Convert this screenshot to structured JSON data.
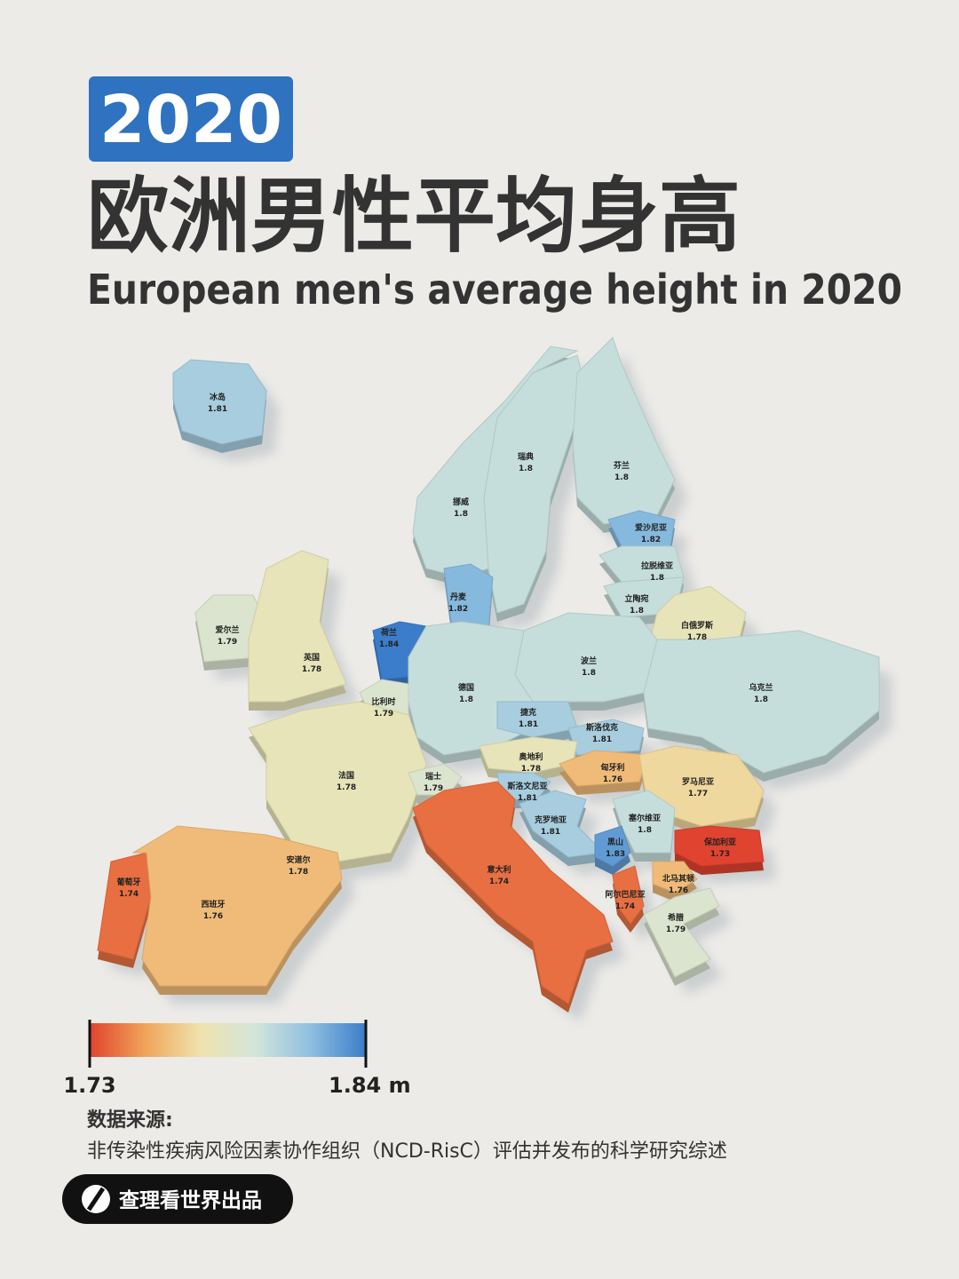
{
  "header": {
    "year": "2020",
    "title_zh": "欧洲男性平均身高",
    "title_en": "European men's average height in 2020"
  },
  "map": {
    "scale": {
      "lim": [
        1.73,
        1.84
      ],
      "colors": [
        "#e0432f",
        "#f0a459",
        "#efe3ad",
        "#d3e5da",
        "#8ebfe0",
        "#3b7dca"
      ]
    },
    "regions": [
      {
        "name": "冰岛",
        "value": 1.81
      },
      {
        "name": "瑞典",
        "value": 1.8
      },
      {
        "name": "芬兰",
        "value": 1.8
      },
      {
        "name": "挪威",
        "value": 1.8
      },
      {
        "name": "爱沙尼亚",
        "value": 1.82
      },
      {
        "name": "拉脱维亚",
        "value": 1.8
      },
      {
        "name": "立陶宛",
        "value": 1.8
      },
      {
        "name": "丹麦",
        "value": 1.82
      },
      {
        "name": "白俄罗斯",
        "value": 1.78
      },
      {
        "name": "爱尔兰",
        "value": 1.79
      },
      {
        "name": "荷兰",
        "value": 1.84
      },
      {
        "name": "英国",
        "value": 1.78
      },
      {
        "name": "波兰",
        "value": 1.8
      },
      {
        "name": "乌克兰",
        "value": 1.8
      },
      {
        "name": "德国",
        "value": 1.8
      },
      {
        "name": "比利时",
        "value": 1.79
      },
      {
        "name": "捷克",
        "value": 1.81
      },
      {
        "name": "斯洛伐克",
        "value": 1.81
      },
      {
        "name": "奥地利",
        "value": 1.78
      },
      {
        "name": "匈牙利",
        "value": 1.76
      },
      {
        "name": "法国",
        "value": 1.78
      },
      {
        "name": "瑞士",
        "value": 1.79
      },
      {
        "name": "罗马尼亚",
        "value": 1.77
      },
      {
        "name": "斯洛文尼亚",
        "value": 1.81
      },
      {
        "name": "克罗地亚",
        "value": 1.81
      },
      {
        "name": "塞尔维亚",
        "value": 1.8
      },
      {
        "name": "黑山",
        "value": 1.83
      },
      {
        "name": "保加利亚",
        "value": 1.73
      },
      {
        "name": "安道尔",
        "value": 1.78
      },
      {
        "name": "意大利",
        "value": 1.74
      },
      {
        "name": "北马其顿",
        "value": 1.76
      },
      {
        "name": "葡萄牙",
        "value": 1.74
      },
      {
        "name": "阿尔巴尼亚",
        "value": 1.74
      },
      {
        "name": "西班牙",
        "value": 1.76
      },
      {
        "name": "希腊",
        "value": 1.79
      }
    ]
  },
  "legend": {
    "ticks": [
      1.73,
      {
        "value": 1.84,
        "label": "1.84 m"
      }
    ]
  },
  "source": {
    "label": "数据来源:",
    "text": "非传染性疾病风险因素协作组织（NCD-RisC）评估并发布的科学研究综述"
  },
  "footer": {
    "brand": "查理看世界出品"
  }
}
